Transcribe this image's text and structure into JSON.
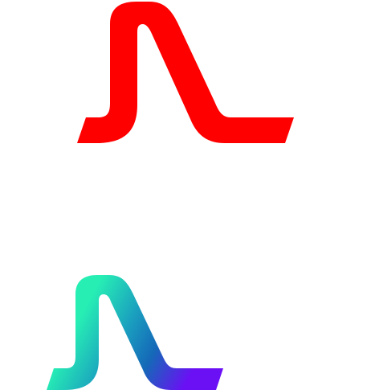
{
  "logos": [
    {
      "icon": "peak-curve-logo-icon",
      "variant": "solid",
      "color": "#ff0000"
    },
    {
      "icon": "peak-curve-logo-icon",
      "variant": "gradient",
      "gradient_colors": [
        "#27efb4",
        "#1a9fbf",
        "#1568b8",
        "#6b0ff5"
      ]
    }
  ]
}
